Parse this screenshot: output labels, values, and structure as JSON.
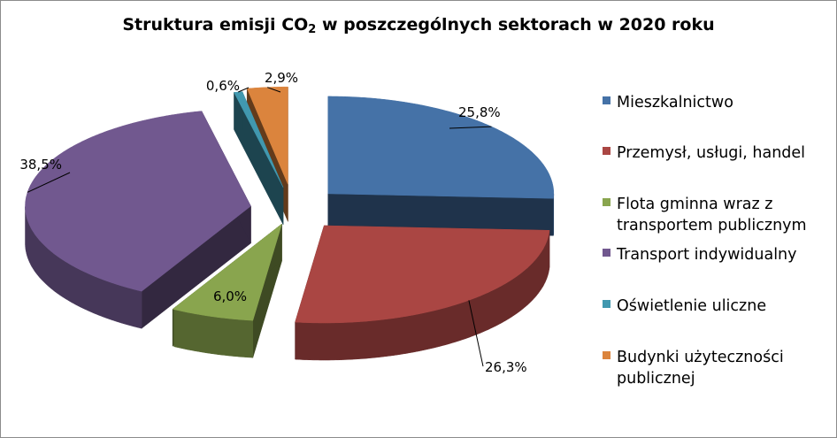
{
  "chart_data": {
    "type": "pie",
    "title": "Struktura emisji CO",
    "title_subscript": "2",
    "title_suffix": " w poszczególnych sektorach w 2020 roku",
    "legend_position": "right",
    "slices": [
      {
        "name": "Mieszkalnictwo",
        "value": 25.8,
        "label": "25,8%",
        "color": "#4572A7"
      },
      {
        "name": "Przemysł, usługi, handel",
        "value": 26.3,
        "label": "26,3%",
        "color": "#AA4643"
      },
      {
        "name": "Flota gminna wraz z\ntransportem publicznym",
        "value": 6.0,
        "label": "6,0%",
        "color": "#89A54E"
      },
      {
        "name": "Transport indywidualny",
        "value": 38.5,
        "label": "38,5%",
        "color": "#71588F"
      },
      {
        "name": "Oświetlenie uliczne",
        "value": 0.6,
        "label": "0,6%",
        "color": "#4198AF"
      },
      {
        "name": "Budynki użyteczności\npublicznej",
        "value": 2.9,
        "label": "2,9%",
        "color": "#DB843D"
      }
    ]
  }
}
